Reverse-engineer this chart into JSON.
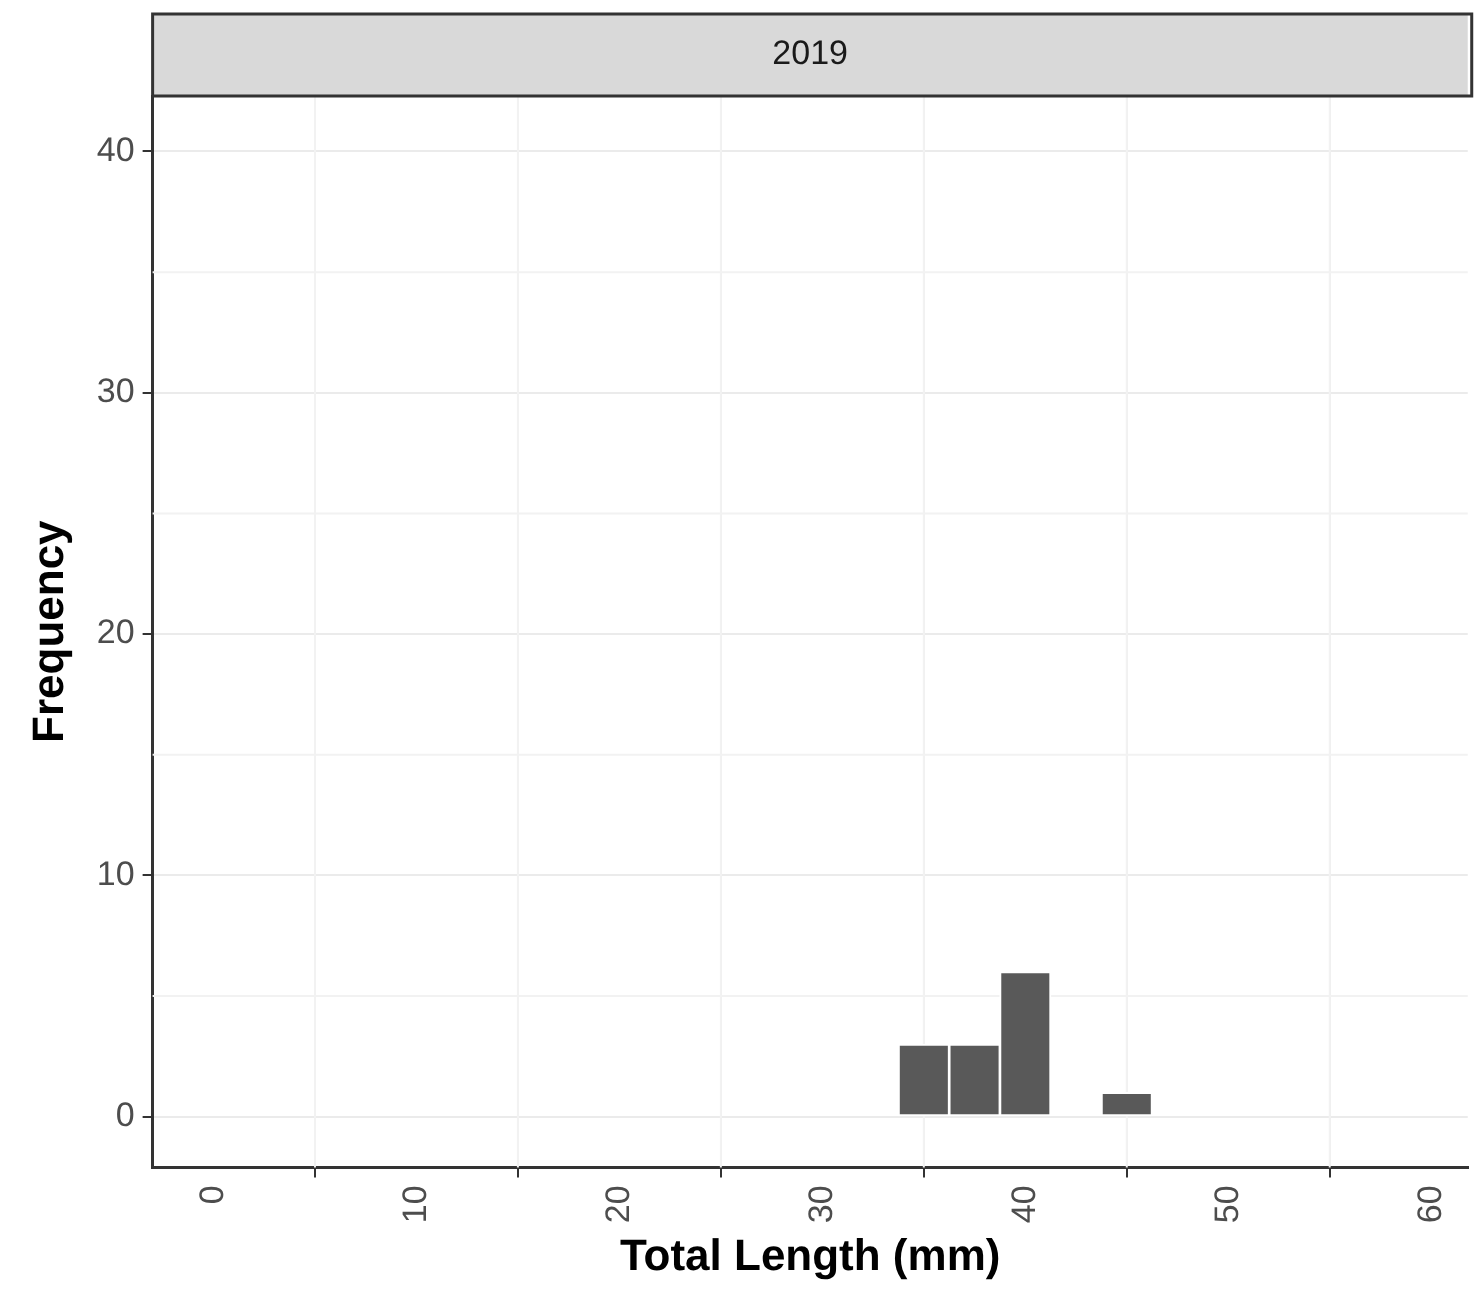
{
  "chart_data": {
    "type": "histogram",
    "title": "2019",
    "xlabel": "Total Length (mm)",
    "ylabel": "Frequency",
    "bins": [
      33.75,
      36.25,
      38.75,
      41.25,
      43.75,
      46.25
    ],
    "values": [
      3,
      3,
      6,
      0,
      1
    ],
    "color": "#595959",
    "xlim": [
      -3,
      61.8
    ],
    "xticks": [
      0,
      10,
      20,
      30,
      40,
      50,
      60
    ],
    "ylim": [
      -2.1,
      42.3
    ],
    "yticks": [
      0,
      10,
      20,
      30,
      40
    ],
    "grid": true,
    "legend": false
  }
}
